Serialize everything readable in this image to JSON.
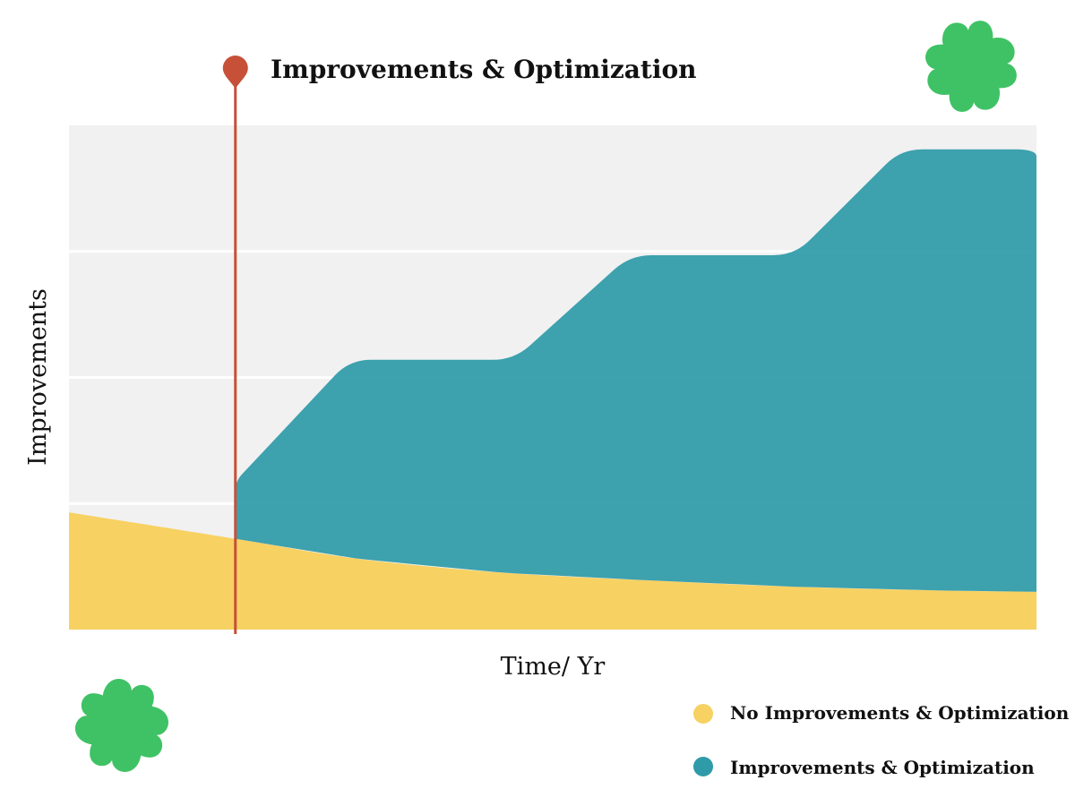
{
  "chart_data": {
    "type": "area",
    "title": "Improvements & Optimization",
    "xlabel": "Time/ Yr",
    "ylabel": "Improvements",
    "xlim": [
      0,
      10
    ],
    "ylim": [
      0,
      4
    ],
    "grid": true,
    "legend_position": "bottom-right",
    "marker": {
      "x": 1.72,
      "label": "Improvements & Optimization",
      "color": "#c65038"
    },
    "series": [
      {
        "name": "No Improvements & Optimization",
        "color": "#f7d162",
        "x": [
          0,
          1.72,
          3,
          4.5,
          6,
          7.5,
          9,
          10
        ],
        "values": [
          0.93,
          0.72,
          0.56,
          0.45,
          0.39,
          0.34,
          0.31,
          0.3
        ]
      },
      {
        "name": "Improvements & Optimization",
        "color": "#2f9ba9",
        "x": [
          1.72,
          2.9,
          4.6,
          5.8,
          7.5,
          8.6,
          10
        ],
        "values": [
          1.18,
          2.14,
          2.14,
          2.97,
          2.97,
          3.81,
          3.81
        ]
      }
    ]
  },
  "decorations": {
    "clover_color": "#3fc265",
    "clover_icon": "four-leaf-clover-icon"
  }
}
